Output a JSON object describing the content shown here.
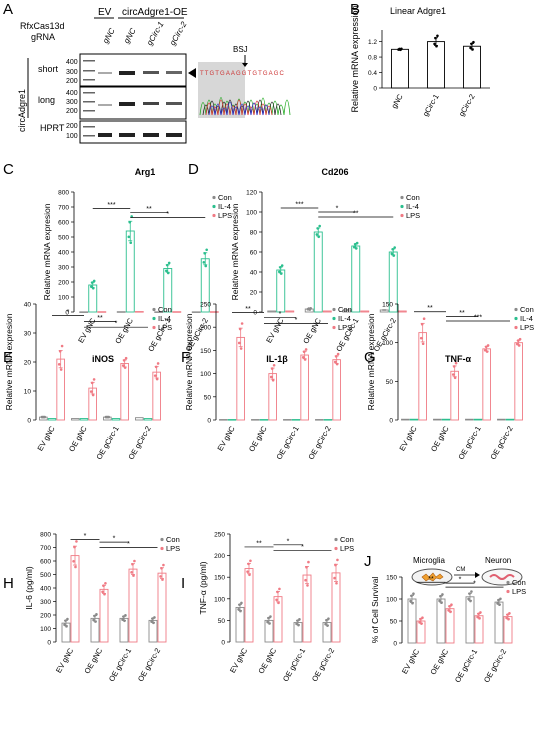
{
  "colors": {
    "con": "#8a8a8a",
    "il4": "#2bbf8e",
    "lps": "#f07a84",
    "gray": "#d9d9d9",
    "stripBg": "#e6e6e6"
  },
  "panelA": {
    "letter": "A",
    "ev": "EV",
    "oe": "circAdgre1-OE",
    "row1": "RfxCas13d",
    "row2": "gRNA",
    "lanes": [
      "gNC",
      "gNC",
      "gCirc-1",
      "gCirc-2"
    ],
    "side": "circAdgre1",
    "short": "short",
    "long": "long",
    "hprt": "HPRT",
    "m1": [
      "400",
      "300",
      "200"
    ],
    "m2": [
      "400",
      "300",
      "200"
    ],
    "m3": [
      "200",
      "100"
    ],
    "bsj": "BSJ",
    "seq": "TTGTGAAGGTGTGAGC"
  },
  "panelJ": {
    "microglia": "Microglia",
    "cm": "CM",
    "neuron": "Neuron"
  },
  "chart_data": [
    {
      "panel": "B",
      "type": "bar",
      "title": "Linear Adgre1",
      "ylabel": "Relative mRNA expression",
      "ylim": [
        0,
        1.5
      ],
      "ticks": [
        "0",
        "0.4",
        "0.8",
        "1.2"
      ],
      "categories": [
        "gNC",
        "gCirc-1",
        "gCirc-2"
      ],
      "series": [
        {
          "key": "lin",
          "values": [
            1.0,
            1.2,
            1.08
          ],
          "errors": [
            0.01,
            0.1,
            0.07
          ]
        }
      ],
      "sig": []
    },
    {
      "panel": "C",
      "type": "bar",
      "title": "Arg1",
      "ylabel": "Relative mRNA expresion",
      "ylim": [
        0,
        800
      ],
      "ticks": [
        "0",
        "100",
        "200",
        "300",
        "400",
        "500",
        "600",
        "700",
        "800"
      ],
      "categories": [
        "EV gNC",
        "OE gNC",
        "OE gCirc-1",
        "OE gCirc-2"
      ],
      "legend": [
        "Con",
        "IL-4",
        "LPS"
      ],
      "series": [
        {
          "key": "con",
          "values": [
            1,
            2,
            1,
            1
          ],
          "errors": [
            0,
            0,
            0,
            0
          ]
        },
        {
          "key": "il4",
          "values": [
            180,
            540,
            290,
            355
          ],
          "errors": [
            18,
            65,
            25,
            40
          ]
        },
        {
          "key": "lps",
          "values": [
            2,
            3,
            2,
            2
          ],
          "errors": [
            0,
            0,
            0,
            0
          ]
        }
      ],
      "sig": [
        {
          "from": 0,
          "to": 1,
          "label": "***",
          "y": 690
        },
        {
          "from": 1,
          "to": 2,
          "label": "**",
          "y": 662
        },
        {
          "from": 1,
          "to": 3,
          "label": "*",
          "y": 630
        }
      ]
    },
    {
      "panel": "D",
      "type": "bar",
      "title": "Cd206",
      "ylabel": "Relative mRNA expresion",
      "ylim": [
        0,
        120
      ],
      "ticks": [
        "0",
        "20",
        "40",
        "60",
        "80",
        "100",
        "120"
      ],
      "categories": [
        "EV gNC",
        "OE gNC",
        "OE gCirc-1",
        "OE gCirc-2"
      ],
      "legend": [
        "Con",
        "IL-4",
        "LPS"
      ],
      "series": [
        {
          "key": "con",
          "values": [
            1,
            3,
            2,
            2
          ],
          "errors": [
            0,
            0.5,
            0.3,
            0.4
          ]
        },
        {
          "key": "il4",
          "values": [
            42,
            80,
            66,
            60
          ],
          "errors": [
            3,
            4,
            2,
            3
          ]
        },
        {
          "key": "lps",
          "values": [
            1,
            1,
            1,
            1
          ],
          "errors": [
            0,
            0,
            0,
            0
          ]
        }
      ],
      "sig": [
        {
          "from": 0,
          "to": 1,
          "label": "***",
          "y": 104
        },
        {
          "from": 1,
          "to": 2,
          "label": "*",
          "y": 100
        },
        {
          "from": 1,
          "to": 3,
          "label": "**",
          "y": 95
        }
      ]
    },
    {
      "panel": "E",
      "type": "bar",
      "title": "iNOS",
      "ylabel": "Relative mRNA expresion",
      "ylim": [
        0,
        40
      ],
      "ticks": [
        "0",
        "10",
        "20",
        "30",
        "40"
      ],
      "categories": [
        "EV gNC",
        "OE gNC",
        "OE gCirc-1",
        "OE gCirc-2"
      ],
      "legend": [
        "Con",
        "IL-4",
        "LPS"
      ],
      "series": [
        {
          "key": "con",
          "values": [
            1,
            0.5,
            1,
            0.8
          ],
          "errors": [
            0,
            0,
            0,
            0
          ]
        },
        {
          "key": "il4",
          "values": [
            0.5,
            0.5,
            0.5,
            0.5
          ],
          "errors": [
            0,
            0,
            0,
            0
          ]
        },
        {
          "key": "lps",
          "values": [
            21,
            11,
            19.5,
            16.5
          ],
          "errors": [
            3,
            2,
            1.2,
            2
          ]
        }
      ],
      "sig": [
        {
          "from": 0,
          "to": 1,
          "label": "*",
          "y": 36
        },
        {
          "from": 1,
          "to": 2,
          "label": "**",
          "y": 34
        },
        {
          "from": 1,
          "to": 3,
          "label": "*",
          "y": 32
        }
      ]
    },
    {
      "panel": "F",
      "type": "bar",
      "title": "IL-1β",
      "ylabel": "Relative mRNA expresion",
      "ylim": [
        0,
        250
      ],
      "ticks": [
        "0",
        "50",
        "100",
        "150",
        "200",
        "250"
      ],
      "categories": [
        "EV gNC",
        "OE gNC",
        "OE gCirc-1",
        "OE gCirc-2"
      ],
      "legend": [
        "Con",
        "IL-4",
        "LPS"
      ],
      "series": [
        {
          "key": "con",
          "values": [
            1,
            1,
            1,
            1
          ],
          "errors": [
            0,
            0,
            0,
            0
          ]
        },
        {
          "key": "il4",
          "values": [
            1,
            1,
            1,
            1
          ],
          "errors": [
            0,
            0,
            0,
            0
          ]
        },
        {
          "key": "lps",
          "values": [
            178,
            100,
            140,
            130
          ],
          "errors": [
            20,
            12,
            8,
            8
          ]
        }
      ],
      "sig": [
        {
          "from": 0,
          "to": 1,
          "label": "**",
          "y": 232
        },
        {
          "from": 1,
          "to": 2,
          "label": "*",
          "y": 221
        },
        {
          "from": 1,
          "to": 3,
          "label": "*",
          "y": 208
        }
      ]
    },
    {
      "panel": "G",
      "type": "bar",
      "title": "TNF-α",
      "ylabel": "Relative mRNA expresion",
      "ylim": [
        0,
        150
      ],
      "ticks": [
        "0",
        "50",
        "100",
        "150"
      ],
      "categories": [
        "EV gNC",
        "OE gNC",
        "OE gCirc-1",
        "OE gCirc-2"
      ],
      "legend": [
        "Con",
        "IL-4",
        "LPS"
      ],
      "series": [
        {
          "key": "con",
          "values": [
            1,
            1,
            1,
            1
          ],
          "errors": [
            0,
            0,
            0,
            0
          ]
        },
        {
          "key": "il4",
          "values": [
            1,
            1,
            1,
            1
          ],
          "errors": [
            0,
            0,
            0,
            0
          ]
        },
        {
          "key": "lps",
          "values": [
            113,
            63,
            92,
            100
          ],
          "errors": [
            12,
            7,
            3,
            3
          ]
        }
      ],
      "sig": [
        {
          "from": 0,
          "to": 1,
          "label": "**",
          "y": 140
        },
        {
          "from": 1,
          "to": 2,
          "label": "**",
          "y": 134
        },
        {
          "from": 1,
          "to": 3,
          "label": "***",
          "y": 128
        }
      ]
    },
    {
      "panel": "H",
      "type": "bar",
      "title": "",
      "ylabel": "IL-6 (pg/ml)",
      "ylim": [
        0,
        800
      ],
      "ticks": [
        "0",
        "100",
        "200",
        "300",
        "400",
        "500",
        "600",
        "700",
        "800"
      ],
      "categories": [
        "EV gNC",
        "OE gNC",
        "OE gCirc-1",
        "OE gCirc-2"
      ],
      "legend": [
        "Con",
        "LPS"
      ],
      "series": [
        {
          "key": "con",
          "values": [
            140,
            175,
            175,
            160
          ],
          "errors": [
            20,
            20,
            15,
            15
          ]
        },
        {
          "key": "lps",
          "values": [
            640,
            390,
            540,
            510
          ],
          "errors": [
            70,
            30,
            40,
            40
          ]
        }
      ],
      "sig": [
        {
          "from": 0,
          "to": 1,
          "label": "*",
          "y": 760
        },
        {
          "from": 1,
          "to": 2,
          "label": "*",
          "y": 740
        },
        {
          "from": 1,
          "to": 3,
          "label": "*",
          "y": 700
        }
      ]
    },
    {
      "panel": "I",
      "type": "bar",
      "title": "",
      "ylabel": "TNF-α (pg/ml)",
      "ylim": [
        0,
        250
      ],
      "ticks": [
        "0",
        "50",
        "100",
        "150",
        "200",
        "250"
      ],
      "categories": [
        "EV gNC",
        "OE gNC",
        "OE gCirc-1",
        "OE gCirc-2"
      ],
      "legend": [
        "Con",
        "LPS"
      ],
      "series": [
        {
          "key": "con",
          "values": [
            80,
            50,
            45,
            45
          ],
          "errors": [
            7,
            6,
            5,
            6
          ]
        },
        {
          "key": "lps",
          "values": [
            170,
            105,
            155,
            160
          ],
          "errors": [
            12,
            12,
            20,
            20
          ]
        }
      ],
      "sig": [
        {
          "from": 0,
          "to": 1,
          "label": "**",
          "y": 220
        },
        {
          "from": 1,
          "to": 2,
          "label": "*",
          "y": 225
        },
        {
          "from": 1,
          "to": 3,
          "label": "*",
          "y": 212
        }
      ]
    },
    {
      "panel": "J",
      "type": "bar",
      "title": "",
      "ylabel": "% of Cell Survival",
      "ylim": [
        0,
        150
      ],
      "ticks": [
        "0",
        "50",
        "100",
        "150"
      ],
      "categories": [
        "EV gNC",
        "OE gNC",
        "OE gCirc-1",
        "OE gCirc-2"
      ],
      "legend": [
        "Con",
        "LPS"
      ],
      "series": [
        {
          "key": "con",
          "values": [
            100,
            100,
            105,
            93
          ],
          "errors": [
            8,
            7,
            8,
            5
          ]
        },
        {
          "key": "lps",
          "values": [
            50,
            78,
            62,
            60
          ],
          "errors": [
            5,
            6,
            5,
            5
          ]
        }
      ],
      "sig": [
        {
          "from": 0,
          "to": 1,
          "label": "**",
          "y": 138
        },
        {
          "from": 1,
          "to": 2,
          "label": "*",
          "y": 136
        },
        {
          "from": 1,
          "to": 3,
          "label": "*",
          "y": 127
        }
      ]
    }
  ]
}
